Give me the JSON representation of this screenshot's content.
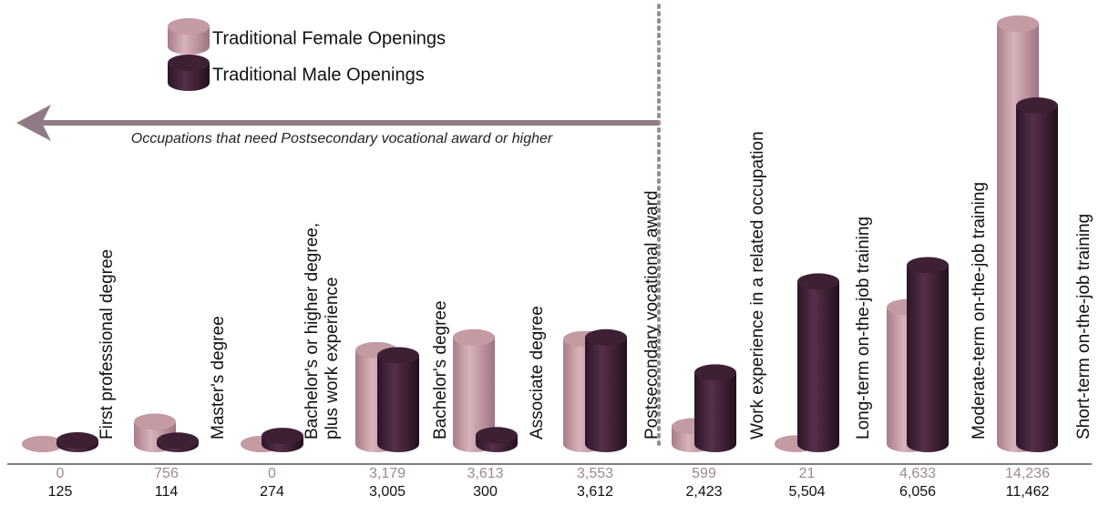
{
  "chart_data": {
    "type": "bar",
    "annotation": "Occupations that need Postsecondary vocational award or higher",
    "categories": [
      "First professional degree",
      "Master's degree",
      "Bachelor's or higher degree,\nplus work experience",
      "Bachelor's degree",
      "Associate degree",
      "Postsecondary vocational award",
      "Work experience in a related occupation",
      "Long-term on-the-job training",
      "Moderate-term on-the-job training",
      "Short-term on-the-job training"
    ],
    "series": [
      {
        "name": "Traditional Female Openings",
        "color": "#c49aa3",
        "values": [
          0,
          756,
          0,
          3179,
          3613,
          3553,
          599,
          21,
          4633,
          14236
        ],
        "value_labels": [
          "0",
          "756",
          "0",
          "3,179",
          "3,613",
          "3,553",
          "599",
          "21",
          "4,633",
          "14,236"
        ]
      },
      {
        "name": "Traditional Male Openings",
        "color": "#3e2035",
        "values": [
          125,
          114,
          274,
          3005,
          300,
          3612,
          2423,
          5504,
          6056,
          11462
        ],
        "value_labels": [
          "125",
          "114",
          "274",
          "3,005",
          "300",
          "3,612",
          "2,423",
          "5,504",
          "6,056",
          "11,462"
        ]
      }
    ]
  }
}
